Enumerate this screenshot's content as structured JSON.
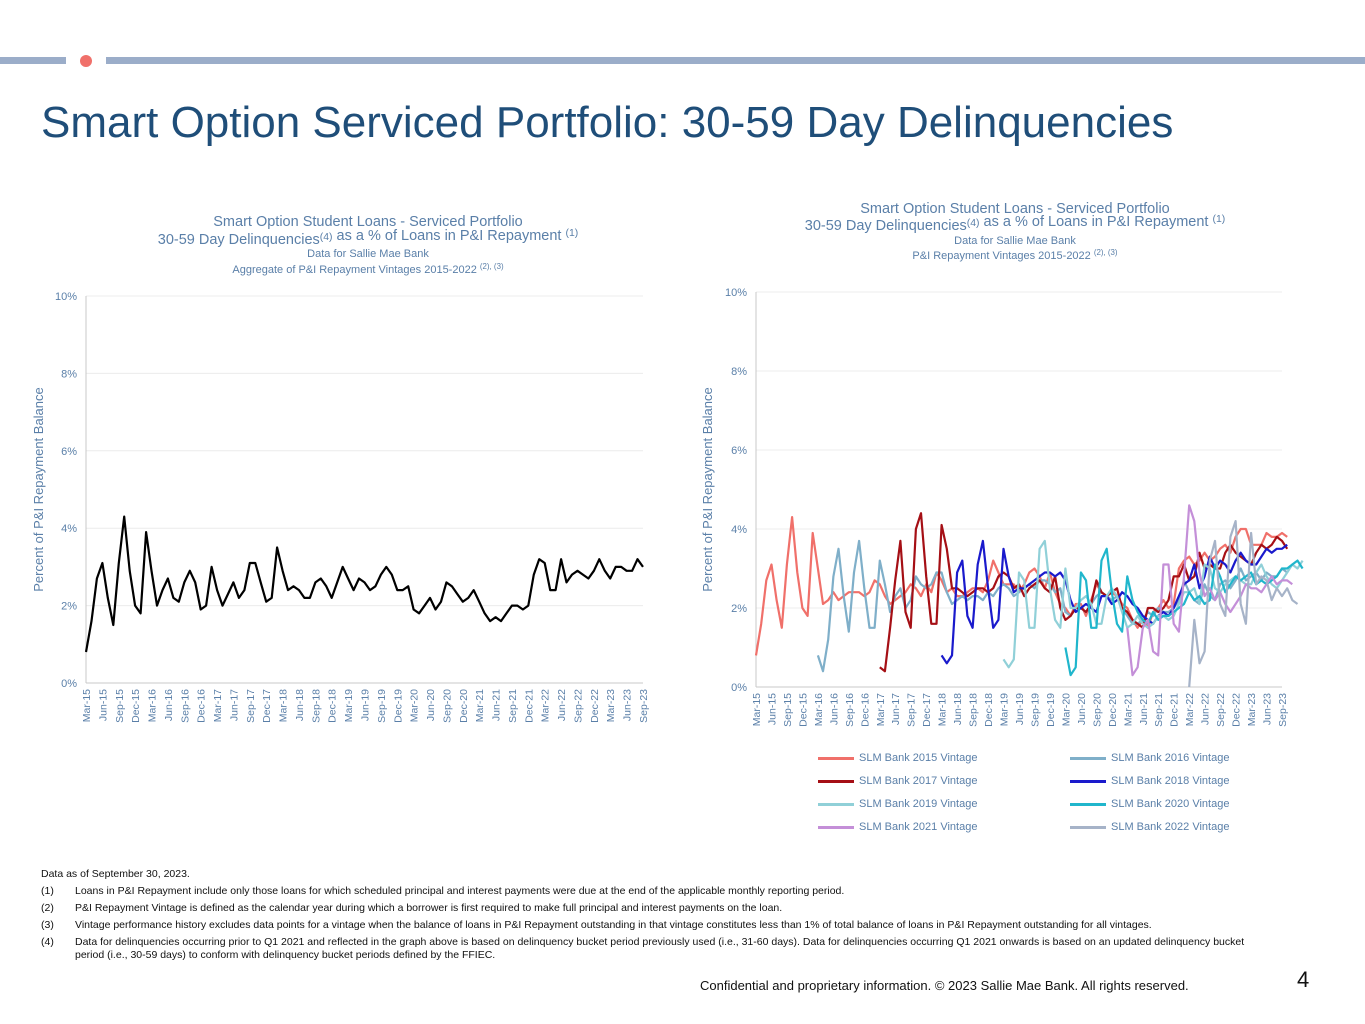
{
  "page": {
    "title": "Smart Option Serviced Portfolio: 30-59 Day Delinquencies",
    "page_number": "4",
    "confidential": "Confidential and proprietary information. © 2023 Sallie Mae Bank. All rights reserved."
  },
  "footnotes": {
    "data_as_of": "Data as of September 30, 2023.",
    "items": [
      {
        "num": "(1)",
        "text": "Loans in P&I Repayment include only those loans for which scheduled principal and interest payments were due at the end of the applicable monthly reporting period."
      },
      {
        "num": "(2)",
        "text": "P&I Repayment Vintage is defined as the calendar year during which a borrower is first required to make full principal and interest payments on the loan."
      },
      {
        "num": "(3)",
        "text": "Vintage performance history excludes data points for a vintage when the balance of loans in P&I Repayment outstanding in that vintage constitutes less than 1% of total balance of loans in P&I Repayment outstanding for all vintages."
      },
      {
        "num": "(4)",
        "text": "Data for delinquencies occurring prior to Q1 2021 and reflected in the graph above is based on delinquency bucket period previously used (i.e., 31-60 days).  Data for delinquencies occurring Q1 2021 onwards is based on an updated delinquency bucket period (i.e., 30-59 days) to conform with delinquency bucket periods defined by the FFIEC."
      }
    ]
  },
  "colors": {
    "title": "#1f4e79",
    "axis_text": "#5a7fa8",
    "aggregate_line": "#000000",
    "accent_bar": "#9badc9",
    "accent_dot": "#f0706a"
  },
  "chart_data": [
    {
      "type": "line",
      "title_lines": [
        "Smart Option Student Loans - Serviced Portfolio",
        "30-59 Day Delinquencies(4) as a % of Loans in P&I Repayment (1)",
        "Data for Sallie Mae Bank",
        "Aggregate of P&I Repayment Vintages 2015-2022 (2), (3)"
      ],
      "ylabel": "Percent of P&I Repayment  Balance",
      "ylim": [
        0,
        10
      ],
      "yticks": [
        "0%",
        "2%",
        "4%",
        "6%",
        "8%",
        "10%"
      ],
      "x_labels": [
        "Mar-15",
        "Jun-15",
        "Sep-15",
        "Dec-15",
        "Mar-16",
        "Jun-16",
        "Sep-16",
        "Dec-16",
        "Mar-17",
        "Jun-17",
        "Sep-17",
        "Dec-17",
        "Mar-18",
        "Jun-18",
        "Sep-18",
        "Dec-18",
        "Mar-19",
        "Jun-19",
        "Sep-19",
        "Dec-19",
        "Mar-20",
        "Jun-20",
        "Sep-20",
        "Dec-20",
        "Mar-21",
        "Jun-21",
        "Sep-21",
        "Dec-21",
        "Mar-22",
        "Jun-22",
        "Sep-22",
        "Dec-22",
        "Mar-23",
        "Jun-23",
        "Sep-23"
      ],
      "grid": true,
      "series": [
        {
          "values": [
            0.8,
            1.6,
            2.7,
            3.1,
            2.2,
            1.5,
            3.1,
            4.3,
            2.9,
            2.0,
            1.8,
            3.9,
            2.9,
            2.0,
            2.4,
            2.7,
            2.2,
            2.1,
            2.6,
            2.9,
            2.6,
            1.9,
            2.0,
            3.0,
            2.4,
            2.0,
            2.3,
            2.6,
            2.2,
            2.4,
            3.1,
            3.1,
            2.6,
            2.1,
            2.2,
            3.5,
            2.9,
            2.4,
            2.5,
            2.4,
            2.2,
            2.2,
            2.6,
            2.7,
            2.5,
            2.2,
            2.6,
            3.0,
            2.7,
            2.4,
            2.7,
            2.6,
            2.4,
            2.5,
            2.8,
            3.0,
            2.8,
            2.4,
            2.4,
            2.5,
            1.9,
            1.8,
            2.0,
            2.2,
            1.9,
            2.1,
            2.6,
            2.5,
            2.3,
            2.1,
            2.2,
            2.4,
            2.1,
            1.8,
            1.6,
            1.7,
            1.6,
            1.8,
            2.0,
            2.0,
            1.9,
            2.0,
            2.8,
            3.2,
            3.1,
            2.4,
            2.4,
            3.2,
            2.6,
            2.8,
            2.9,
            2.8,
            2.7,
            2.9,
            3.2,
            2.9,
            2.7,
            3.0,
            3.0,
            2.9,
            2.9,
            3.2,
            3.0
          ]
        }
      ]
    },
    {
      "type": "line",
      "title_lines": [
        "Smart Option Student Loans - Serviced Portfolio",
        "30-59  Day Delinquencies(4) as a % of Loans in P&I Repayment (1)",
        "Data for Sallie Mae Bank",
        "P&I Repayment Vintages 2015-2022 (2), (3)"
      ],
      "ylabel": "Percent of P&I Repayment  Balance",
      "ylim": [
        0,
        10
      ],
      "yticks": [
        "0%",
        "2%",
        "4%",
        "6%",
        "8%",
        "10%"
      ],
      "x_labels": [
        "Mar-15",
        "Jun-15",
        "Sep-15",
        "Dec-15",
        "Mar-16",
        "Jun-16",
        "Sep-16",
        "Dec-16",
        "Mar-17",
        "Jun-17",
        "Sep-17",
        "Dec-17",
        "Mar-18",
        "Jun-18",
        "Sep-18",
        "Dec-18",
        "Mar-19",
        "Jun-19",
        "Sep-19",
        "Dec-19",
        "Mar-20",
        "Jun-20",
        "Sep-20",
        "Dec-20",
        "Mar-21",
        "Jun-21",
        "Sep-21",
        "Dec-21",
        "Mar-22",
        "Jun-22",
        "Sep-22",
        "Dec-22",
        "Mar-23",
        "Jun-23",
        "Sep-23"
      ],
      "grid": true,
      "legend_position": "bottom",
      "series": [
        {
          "name": "SLM Bank 2015 Vintage",
          "color": "#f0706a",
          "start_index": 0,
          "values": [
            0.8,
            1.6,
            2.7,
            3.1,
            2.2,
            1.5,
            3.1,
            4.3,
            2.9,
            2.0,
            1.8,
            3.9,
            3.0,
            2.1,
            2.2,
            2.4,
            2.2,
            2.3,
            2.4,
            2.4,
            2.4,
            2.3,
            2.4,
            2.7,
            2.6,
            2.3,
            2.1,
            2.2,
            2.3,
            2.4,
            2.6,
            2.5,
            2.3,
            2.6,
            2.4,
            2.9,
            2.7,
            2.4,
            2.5,
            2.3,
            2.3,
            2.4,
            2.5,
            2.5,
            2.4,
            2.7,
            3.2,
            2.9,
            2.6,
            2.6,
            2.6,
            2.4,
            2.6,
            2.9,
            3.0,
            2.8,
            2.5,
            2.9,
            2.4,
            2.1,
            2.0,
            1.8,
            2.1,
            2.1,
            1.8,
            2.2,
            2.6,
            2.4,
            2.3,
            2.4,
            2.3,
            2.1,
            2.0,
            1.7,
            1.5,
            1.7,
            1.5,
            1.9,
            2.0,
            2.2,
            2.0,
            2.1,
            3.0,
            3.2,
            3.3,
            3.1,
            3.2,
            3.4,
            3.2,
            3.3,
            3.5,
            3.6,
            3.4,
            3.8,
            4.0,
            4.0,
            3.6,
            3.6,
            3.6,
            3.9,
            3.8,
            3.8,
            3.9,
            3.8
          ]
        },
        {
          "name": "SLM Bank 2016 Vintage",
          "color": "#7fafc9",
          "start_index": 12,
          "values": [
            0.8,
            0.4,
            1.2,
            2.8,
            3.5,
            2.3,
            1.4,
            2.9,
            3.7,
            2.5,
            1.5,
            1.5,
            3.2,
            2.6,
            1.9,
            2.3,
            2.5,
            2.0,
            2.2,
            2.8,
            2.6,
            2.5,
            2.6,
            2.9,
            2.9,
            2.4,
            2.1,
            2.2,
            2.3,
            2.2,
            2.3,
            2.3,
            2.2,
            2.4,
            2.3,
            2.5,
            2.6,
            2.5,
            2.3,
            2.4,
            2.5,
            2.6,
            2.5,
            2.7,
            2.7,
            2.6,
            2.4,
            2.5,
            1.9,
            1.8,
            2.0,
            2.0,
            1.9,
            2.1,
            2.3,
            2.4,
            2.3,
            2.2,
            2.3,
            2.0,
            1.8,
            1.6,
            1.6,
            1.7,
            1.9,
            1.8,
            2.0,
            1.9,
            1.9,
            2.0,
            2.2,
            2.7,
            2.4,
            2.2,
            2.1,
            2.6,
            2.3,
            2.2,
            2.6,
            2.7,
            2.5,
            2.7,
            3.0,
            2.7,
            2.8,
            2.9,
            2.7,
            2.9,
            2.8,
            2.8,
            3.0,
            2.9
          ]
        },
        {
          "name": "SLM Bank 2017 Vintage",
          "color": "#a50f15",
          "start_index": 24,
          "values": [
            0.5,
            0.4,
            1.5,
            2.7,
            3.7,
            1.9,
            1.5,
            4.0,
            4.4,
            2.8,
            1.6,
            1.6,
            4.1,
            3.5,
            2.5,
            2.5,
            2.4,
            2.3,
            2.4,
            2.5,
            2.5,
            2.4,
            2.5,
            2.8,
            2.9,
            2.8,
            2.5,
            2.6,
            2.3,
            2.5,
            2.6,
            2.7,
            2.5,
            2.4,
            2.8,
            2.0,
            1.7,
            1.8,
            2.0,
            2.0,
            1.9,
            2.1,
            2.7,
            2.4,
            2.3,
            2.4,
            2.5,
            2.0,
            1.9,
            1.7,
            1.6,
            1.5,
            2.0,
            2.0,
            1.9,
            2.0,
            2.2,
            2.8,
            2.8,
            3.1,
            2.7,
            2.8,
            3.4,
            3.0,
            3.1,
            3.0,
            3.0,
            3.4,
            3.6,
            3.4,
            3.3,
            3.2,
            3.1,
            3.4,
            3.6,
            3.5,
            3.6,
            3.8,
            3.7,
            3.5
          ]
        },
        {
          "name": "SLM Bank 2018 Vintage",
          "color": "#1a1acc",
          "start_index": 36,
          "values": [
            0.8,
            0.6,
            0.8,
            2.9,
            3.2,
            1.8,
            1.5,
            3.1,
            3.7,
            2.5,
            1.5,
            1.7,
            3.5,
            2.8,
            2.4,
            2.5,
            2.5,
            2.6,
            2.7,
            2.8,
            2.9,
            2.9,
            2.8,
            2.9,
            2.7,
            2.2,
            1.9,
            2.0,
            2.1,
            2.0,
            1.9,
            2.3,
            2.3,
            2.1,
            2.2,
            2.4,
            2.3,
            2.1,
            2.0,
            1.8,
            1.7,
            1.6,
            1.8,
            1.9,
            1.8,
            2.0,
            2.3,
            2.6,
            2.7,
            3.1,
            2.5,
            2.8,
            3.3,
            3.0,
            3.2,
            3.1,
            2.9,
            3.2,
            3.4,
            3.2,
            3.1,
            3.1,
            3.3,
            3.5,
            3.4,
            3.5,
            3.5,
            3.6
          ]
        },
        {
          "name": "SLM Bank 2019 Vintage",
          "color": "#90d0d8",
          "start_index": 48,
          "values": [
            0.7,
            0.5,
            0.7,
            2.9,
            2.7,
            1.5,
            1.5,
            3.5,
            3.7,
            2.5,
            1.7,
            1.5,
            3.0,
            2.0,
            2.0,
            2.2,
            2.3,
            2.1,
            1.6,
            1.6,
            2.3,
            2.5,
            2.3,
            1.9,
            1.5,
            1.6,
            1.8,
            1.6,
            1.5,
            1.6,
            1.8,
            1.8,
            1.7,
            1.8,
            2.1,
            2.4,
            2.4,
            2.5,
            2.1,
            3.1,
            3.0,
            2.5,
            2.4,
            2.6,
            2.7,
            2.8,
            2.7,
            2.6,
            2.6,
            2.9,
            3.1,
            2.8,
            2.6,
            2.5,
            2.7,
            2.9,
            3.1,
            3.0,
            3.2
          ]
        },
        {
          "name": "SLM Bank 2020 Vintage",
          "color": "#20b6cc",
          "start_index": 60,
          "values": [
            1.0,
            0.3,
            0.5,
            2.9,
            2.7,
            1.5,
            1.5,
            3.2,
            3.5,
            2.4,
            1.6,
            1.4,
            2.8,
            2.2,
            1.9,
            1.7,
            1.6,
            1.9,
            1.7,
            1.8,
            1.8,
            1.9,
            2.0,
            2.1,
            2.4,
            2.2,
            2.3,
            2.1,
            2.2,
            3.1,
            2.8,
            2.4,
            2.6,
            2.8,
            2.7,
            2.8,
            2.9,
            2.6,
            2.7,
            2.6,
            2.7,
            2.8,
            3.0,
            3.0,
            3.1,
            3.2,
            3.0
          ]
        },
        {
          "name": "SLM Bank 2021 Vintage",
          "color": "#c48fd8",
          "start_index": 72,
          "values": [
            1.5,
            0.3,
            0.5,
            1.5,
            1.7,
            0.9,
            0.8,
            3.1,
            3.1,
            1.6,
            1.4,
            2.8,
            4.6,
            4.2,
            2.9,
            2.3,
            2.5,
            2.2,
            2.4,
            2.1,
            1.9,
            2.1,
            2.3,
            2.6,
            2.5,
            2.5,
            2.4,
            2.6,
            2.8,
            2.6,
            2.7,
            2.7,
            2.6
          ]
        },
        {
          "name": "SLM Bank 2022 Vintage",
          "color": "#a6b3c8",
          "start_index": 84,
          "values": [
            0.0,
            1.7,
            0.6,
            0.9,
            3.2,
            3.7,
            2.1,
            1.8,
            3.8,
            4.2,
            2.1,
            1.6,
            3.9,
            2.6,
            2.8,
            2.7,
            2.2,
            2.5,
            2.3,
            2.5,
            2.2,
            2.1
          ]
        }
      ]
    }
  ]
}
